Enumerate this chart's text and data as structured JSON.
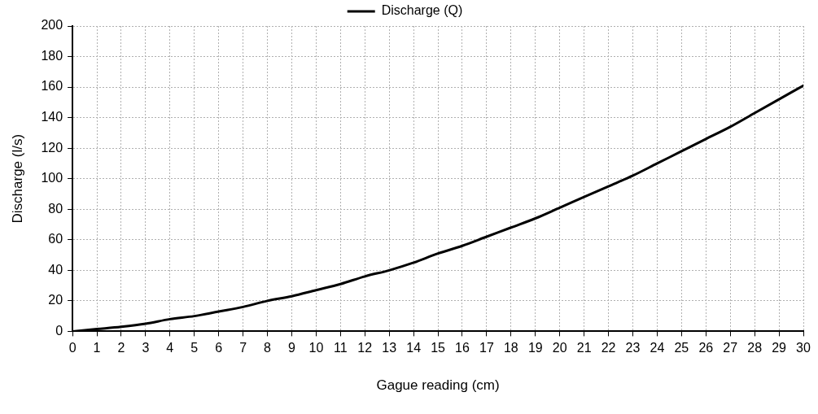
{
  "chart_data": {
    "type": "line",
    "xlabel": "Gague reading (cm)",
    "ylabel": "Discharge (l/s)",
    "x": [
      0,
      1,
      2,
      3,
      4,
      5,
      6,
      7,
      8,
      9,
      10,
      11,
      12,
      13,
      14,
      15,
      16,
      17,
      18,
      19,
      20,
      21,
      22,
      23,
      24,
      25,
      26,
      27,
      28,
      29,
      30
    ],
    "series": [
      {
        "name": "Discharge (Q)",
        "color": "#000000",
        "values": [
          0,
          1.5,
          3,
          5,
          8,
          10,
          13,
          16,
          20,
          23,
          27,
          31,
          36,
          40,
          45,
          51,
          56,
          62,
          68,
          74,
          81,
          88,
          95,
          102,
          110,
          118,
          126,
          134,
          143,
          152,
          161
        ]
      }
    ],
    "xlim": [
      0,
      30
    ],
    "xticks": [
      0,
      1,
      2,
      3,
      4,
      5,
      6,
      7,
      8,
      9,
      10,
      11,
      12,
      13,
      14,
      15,
      16,
      17,
      18,
      19,
      20,
      21,
      22,
      23,
      24,
      25,
      26,
      27,
      28,
      29,
      30
    ],
    "ylim": [
      0,
      200
    ],
    "yticks": [
      0,
      20,
      40,
      60,
      80,
      100,
      120,
      140,
      160,
      180,
      200
    ],
    "grid": true,
    "legend": "top",
    "marker": "none",
    "line_style": "solid"
  }
}
